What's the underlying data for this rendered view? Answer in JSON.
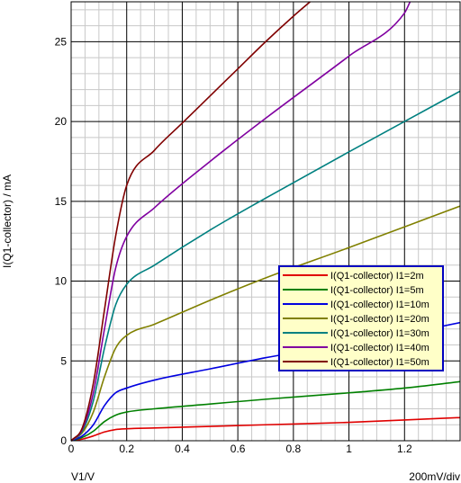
{
  "chart_data": {
    "type": "line",
    "xlabel": "V1/V",
    "ylabel": "I(Q1-collector) / mA",
    "scale_note": "200mV/div",
    "xlim": [
      0,
      1.4
    ],
    "ylim": [
      0,
      27.5
    ],
    "x_ticks": [
      0,
      0.2,
      0.4,
      0.6,
      0.8,
      1,
      1.2
    ],
    "x_tick_labels": [
      "0",
      "0.2",
      "0.4",
      "0.6",
      "0.8",
      "1",
      "1.2"
    ],
    "y_ticks": [
      0,
      5,
      10,
      15,
      20,
      25
    ],
    "y_tick_labels": [
      "0",
      "5",
      "10",
      "15",
      "20",
      "25"
    ],
    "grid": true,
    "legend_position": "right",
    "series": [
      {
        "name": "I(Q1-collector) I1=2m",
        "color": "#e00000",
        "x": [
          0,
          0.04,
          0.08,
          0.12,
          0.16,
          0.2,
          0.3,
          0.5,
          0.7,
          1.0,
          1.2,
          1.4
        ],
        "y": [
          0,
          0.1,
          0.3,
          0.55,
          0.7,
          0.75,
          0.8,
          0.9,
          1.0,
          1.15,
          1.3,
          1.45
        ]
      },
      {
        "name": "I(Q1-collector) I1=5m",
        "color": "#008000",
        "x": [
          0,
          0.04,
          0.08,
          0.12,
          0.16,
          0.2,
          0.3,
          0.5,
          0.7,
          1.0,
          1.2,
          1.4
        ],
        "y": [
          0,
          0.2,
          0.6,
          1.2,
          1.6,
          1.8,
          2.0,
          2.3,
          2.6,
          3.0,
          3.3,
          3.7
        ]
      },
      {
        "name": "I(Q1-collector) I1=10m",
        "color": "#0000e0",
        "x": [
          0,
          0.04,
          0.08,
          0.12,
          0.16,
          0.2,
          0.3,
          0.5,
          0.7,
          1.0,
          1.2,
          1.4
        ],
        "y": [
          0,
          0.3,
          1.0,
          2.2,
          3.0,
          3.3,
          3.8,
          4.5,
          5.2,
          6.1,
          6.7,
          7.4
        ]
      },
      {
        "name": "I(Q1-collector) I1=20m",
        "color": "#808000",
        "x": [
          0,
          0.04,
          0.08,
          0.12,
          0.16,
          0.2,
          0.3,
          0.5,
          0.7,
          1.0,
          1.2,
          1.4
        ],
        "y": [
          0,
          0.5,
          1.8,
          4.0,
          5.8,
          6.6,
          7.3,
          8.8,
          10.2,
          12.1,
          13.4,
          14.7
        ]
      },
      {
        "name": "I(Q1-collector) I1=30m",
        "color": "#008080",
        "x": [
          0,
          0.04,
          0.08,
          0.12,
          0.16,
          0.2,
          0.3,
          0.5,
          0.7,
          1.0,
          1.2,
          1.4
        ],
        "y": [
          0,
          0.6,
          2.5,
          5.8,
          8.5,
          9.8,
          11.0,
          13.2,
          15.2,
          18.1,
          20.0,
          21.9
        ]
      },
      {
        "name": "I(Q1-collector) I1=40m",
        "color": "#8000a0",
        "x": [
          0,
          0.04,
          0.08,
          0.12,
          0.16,
          0.2,
          0.3,
          0.5,
          0.7,
          1.0,
          1.2,
          1.22
        ],
        "y": [
          0,
          0.7,
          3.0,
          7.0,
          10.8,
          12.8,
          14.6,
          17.5,
          20.2,
          24.1,
          26.8,
          27.5
        ]
      },
      {
        "name": "I(Q1-collector) I1=50m",
        "color": "#800000",
        "x": [
          0,
          0.04,
          0.08,
          0.12,
          0.16,
          0.2,
          0.3,
          0.4,
          0.5,
          0.6,
          0.7,
          0.8,
          0.86
        ],
        "y": [
          0,
          0.8,
          3.6,
          8.2,
          12.8,
          16.0,
          18.2,
          19.9,
          21.6,
          23.3,
          25.0,
          26.6,
          27.5
        ]
      }
    ]
  }
}
